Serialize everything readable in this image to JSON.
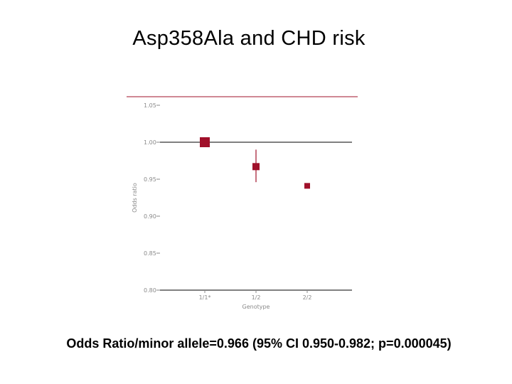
{
  "slide": {
    "title": "Asp358Ala and CHD risk",
    "footnote": "Odds Ratio/minor allele=0.966 (95% CI 0.950-0.982; p=0.000045)"
  },
  "chart_data": {
    "type": "scatter",
    "categories": [
      "1/1*",
      "1/2",
      "2/2"
    ],
    "series": [
      {
        "values": [
          1.0,
          0.967,
          0.941
        ],
        "ci_lower": [
          null,
          0.946,
          null
        ],
        "ci_upper": [
          null,
          0.99,
          null
        ]
      }
    ],
    "xlabel": "Genotype",
    "ylabel": "Odds ratio",
    "ylim": [
      0.8,
      1.05
    ],
    "yticks": [
      "0.80",
      "0.85",
      "0.90",
      "0.95",
      "1.00",
      "1.05"
    ],
    "reference_line": 1.0,
    "grid": false,
    "colors": {
      "marker": "#a0102a",
      "axis": "#000000",
      "tick_text": "#8a8a8a"
    }
  }
}
